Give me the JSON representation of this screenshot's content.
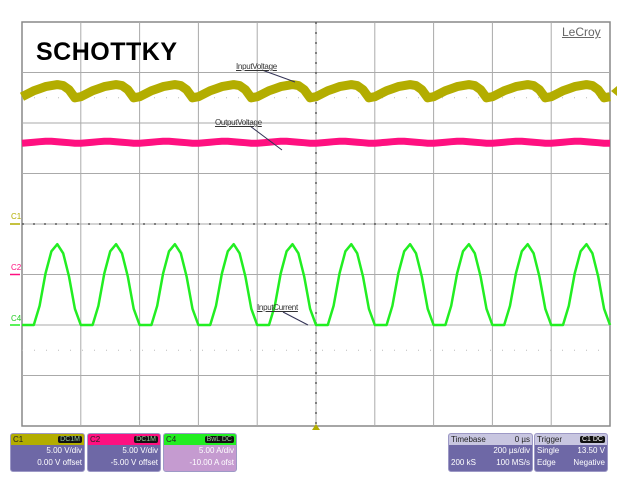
{
  "title": "SCHOTTKY",
  "brand": "LeCroy",
  "channel_markers": [
    "C1",
    "C2",
    "C4"
  ],
  "colors": {
    "C1": "#b3ad00",
    "C2": "#ff1080",
    "C4": "#22ee22",
    "grid": "#aaaaaa",
    "panel": "#6e68a6",
    "c4_panel": "#c59bd0"
  },
  "panels": {
    "c1": {
      "name": "C1",
      "badge": "DC1M",
      "vdiv": "5.00 V/div",
      "offset": "0.00 V offset"
    },
    "c2": {
      "name": "C2",
      "badge": "DC1M",
      "vdiv": "5.00 V/div",
      "offset": "-5.00 V offset"
    },
    "c4": {
      "name": "C4",
      "badge": "BwL DC",
      "vdiv": "5.00 A/div",
      "offset": "-10.00 A ofst"
    },
    "timebase": {
      "label": "Timebase",
      "delay": "0 µs",
      "tdiv": "200 µs/div",
      "samples": "200 kS",
      "rate": "100 MS/s"
    },
    "trigger": {
      "label": "Trigger",
      "badge": "C1 DC",
      "mode": "Single",
      "level": "13.50 V",
      "type": "Edge",
      "slope": "Negative"
    }
  },
  "chart_data": {
    "type": "line",
    "title": "SCHOTTKY",
    "xlim_us": [
      -1000,
      1000
    ],
    "x_divisions": 10,
    "y_divisions": 8,
    "grid": true,
    "x_step_us": 20,
    "series": [
      {
        "name": "InputVoltage",
        "channel": "C1",
        "units_per_div": 5,
        "offset": 0,
        "pattern": [
          12.6,
          12.9,
          13.2,
          13.4,
          13.6,
          13.7,
          13.8,
          13.7,
          13.3,
          12.5
        ]
      },
      {
        "name": "OutputVoltage",
        "channel": "C2",
        "units_per_div": 5,
        "offset": -5,
        "pattern": [
          13.0,
          13.05,
          13.1,
          13.15,
          13.2,
          13.2,
          13.15,
          13.1,
          13.05,
          13.0
        ]
      },
      {
        "name": "InputCurrent",
        "channel": "C4",
        "units_per_div": 5,
        "offset": -10,
        "pattern": [
          0,
          0,
          0,
          1.9,
          5.1,
          7.3,
          8.0,
          7.1,
          4.8,
          1.6
        ]
      }
    ]
  }
}
